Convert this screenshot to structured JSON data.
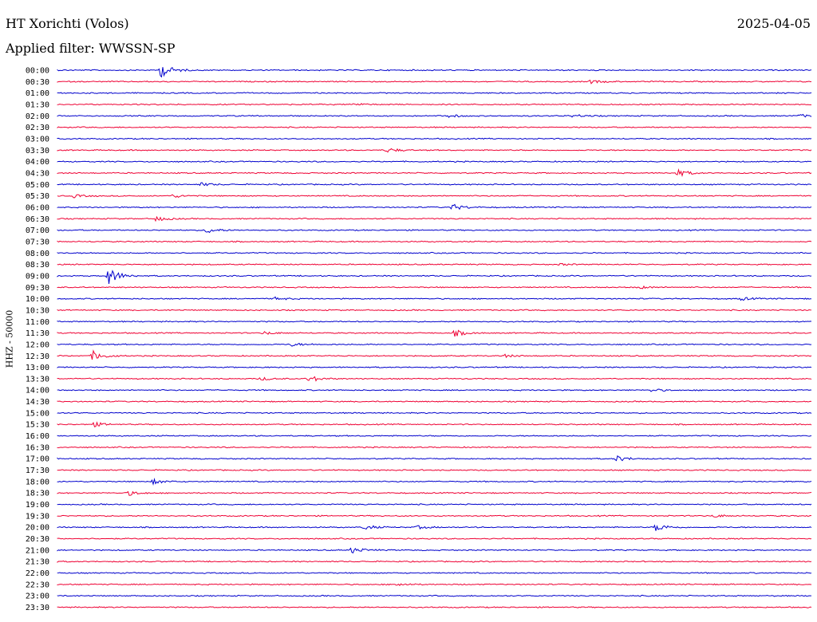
{
  "header": {
    "station": "HT Xorichti (Volos)",
    "date": "2025-04-05",
    "filter": "Applied filter: WWSSN-SP",
    "channel_label": "HHZ - 50000"
  },
  "chart_data": {
    "type": "line",
    "title": "HT Xorichti (Volos)",
    "ylabel": "HHZ - 50000",
    "trace_colors": [
      "#0000cc",
      "#ee0033"
    ],
    "rows": [
      "00:00",
      "00:30",
      "01:00",
      "01:30",
      "02:00",
      "02:30",
      "03:00",
      "03:30",
      "04:00",
      "04:30",
      "05:00",
      "05:30",
      "06:00",
      "06:30",
      "07:00",
      "07:30",
      "08:00",
      "08:30",
      "09:00",
      "09:30",
      "10:00",
      "10:30",
      "11:00",
      "11:30",
      "12:00",
      "12:30",
      "13:00",
      "13:30",
      "14:00",
      "14:30",
      "15:00",
      "15:30",
      "16:00",
      "16:30",
      "17:00",
      "17:30",
      "18:00",
      "18:30",
      "19:00",
      "19:30",
      "20:00",
      "20:30",
      "21:00",
      "21:30",
      "22:00",
      "22:30",
      "23:00",
      "23:30"
    ],
    "x_range_minutes": [
      0,
      30
    ],
    "events": [
      {
        "row": "00:00",
        "minute": 4.1,
        "amplitude": 9
      },
      {
        "row": "00:30",
        "minute": 21.2,
        "amplitude": 2
      },
      {
        "row": "01:30",
        "minute": 11.7,
        "amplitude": 2
      },
      {
        "row": "02:00",
        "minute": 15.5,
        "amplitude": 2
      },
      {
        "row": "02:00",
        "minute": 20.5,
        "amplitude": 2
      },
      {
        "row": "02:00",
        "minute": 29.5,
        "amplitude": 2
      },
      {
        "row": "03:30",
        "minute": 13.1,
        "amplitude": 3
      },
      {
        "row": "04:30",
        "minute": 24.6,
        "amplitude": 5
      },
      {
        "row": "05:00",
        "minute": 5.7,
        "amplitude": 2
      },
      {
        "row": "05:30",
        "minute": 0.6,
        "amplitude": 2
      },
      {
        "row": "05:30",
        "minute": 4.6,
        "amplitude": 2
      },
      {
        "row": "06:00",
        "minute": 15.7,
        "amplitude": 4
      },
      {
        "row": "06:30",
        "minute": 3.9,
        "amplitude": 3
      },
      {
        "row": "07:00",
        "minute": 5.9,
        "amplitude": 4
      },
      {
        "row": "08:30",
        "minute": 20,
        "amplitude": 1
      },
      {
        "row": "09:00",
        "minute": 2,
        "amplitude": 11
      },
      {
        "row": "09:30",
        "minute": 23.1,
        "amplitude": 2
      },
      {
        "row": "10:00",
        "minute": 8.6,
        "amplitude": 2
      },
      {
        "row": "10:00",
        "minute": 27.2,
        "amplitude": 2
      },
      {
        "row": "11:30",
        "minute": 8.2,
        "amplitude": 2
      },
      {
        "row": "11:30",
        "minute": 15.8,
        "amplitude": 4
      },
      {
        "row": "12:00",
        "minute": 9.3,
        "amplitude": 2
      },
      {
        "row": "12:30",
        "minute": 1.4,
        "amplitude": 6
      },
      {
        "row": "12:30",
        "minute": 17.7,
        "amplitude": 2
      },
      {
        "row": "13:30",
        "minute": 10,
        "amplitude": 4
      },
      {
        "row": "13:30",
        "minute": 8.1,
        "amplitude": 2
      },
      {
        "row": "14:00",
        "minute": 23.6,
        "amplitude": 2
      },
      {
        "row": "15:30",
        "minute": 1.4,
        "amplitude": 3
      },
      {
        "row": "17:00",
        "minute": 22.2,
        "amplitude": 4
      },
      {
        "row": "18:00",
        "minute": 3.8,
        "amplitude": 3
      },
      {
        "row": "18:30",
        "minute": 2.8,
        "amplitude": 3
      },
      {
        "row": "19:30",
        "minute": 26.1,
        "amplitude": 2
      },
      {
        "row": "20:00",
        "minute": 12.2,
        "amplitude": 3
      },
      {
        "row": "20:00",
        "minute": 14.3,
        "amplitude": 2
      },
      {
        "row": "20:00",
        "minute": 23.8,
        "amplitude": 5
      },
      {
        "row": "21:00",
        "minute": 11.7,
        "amplitude": 4
      },
      {
        "row": "22:30",
        "minute": 13.5,
        "amplitude": 2
      }
    ]
  }
}
